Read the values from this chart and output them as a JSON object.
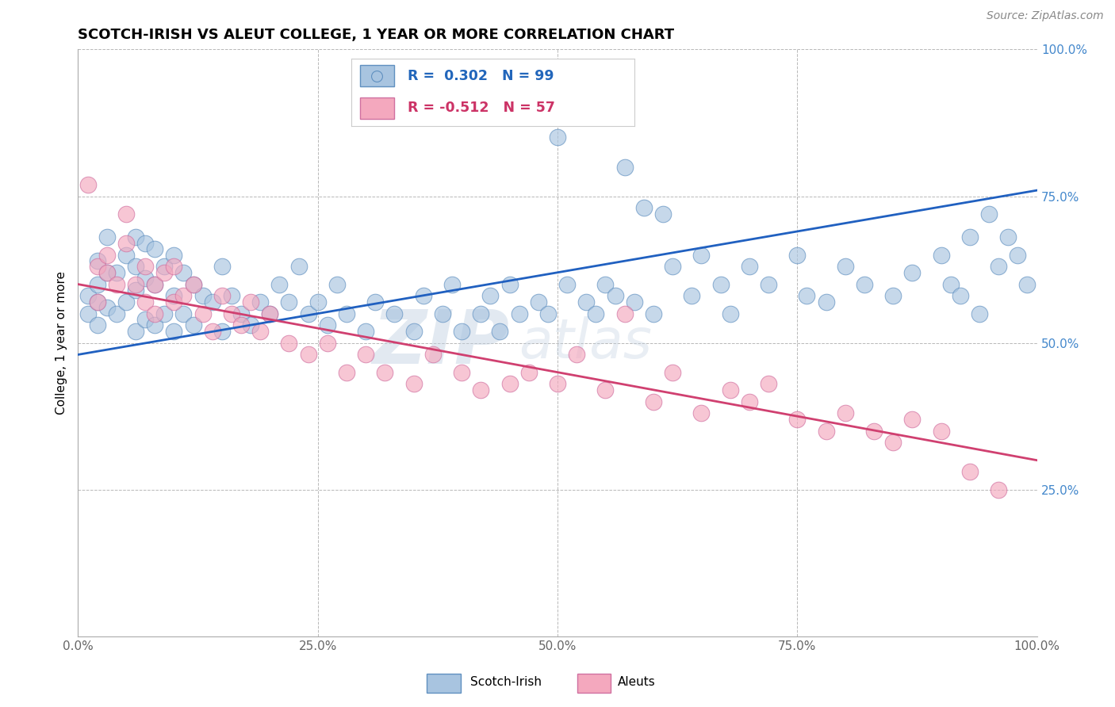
{
  "title": "SCOTCH-IRISH VS ALEUT COLLEGE, 1 YEAR OR MORE CORRELATION CHART",
  "source": "Source: ZipAtlas.com",
  "ylabel": "College, 1 year or more",
  "xlim": [
    0,
    1
  ],
  "ylim": [
    0,
    1
  ],
  "xticks": [
    0,
    0.25,
    0.5,
    0.75,
    1.0
  ],
  "yticks": [
    0.25,
    0.5,
    0.75,
    1.0
  ],
  "xtick_labels": [
    "0.0%",
    "25.0%",
    "50.0%",
    "75.0%",
    "100.0%"
  ],
  "ytick_labels_right": [
    "25.0%",
    "50.0%",
    "75.0%",
    "100.0%"
  ],
  "blue_R": 0.302,
  "blue_N": 99,
  "pink_R": -0.512,
  "pink_N": 57,
  "blue_color": "#a8c4e0",
  "pink_color": "#f4a8be",
  "blue_edge_color": "#6090c0",
  "pink_edge_color": "#d070a0",
  "blue_line_color": "#2060c0",
  "pink_line_color": "#d04070",
  "legend_label_blue": "Scotch-Irish",
  "legend_label_pink": "Aleuts",
  "watermark_zip": "ZIP",
  "watermark_atlas": "atlas",
  "blue_line_x0": 0.0,
  "blue_line_y0": 0.48,
  "blue_line_x1": 1.0,
  "blue_line_y1": 0.76,
  "pink_line_x0": 0.0,
  "pink_line_y0": 0.6,
  "pink_line_x1": 1.0,
  "pink_line_y1": 0.3,
  "blue_scatter_x": [
    0.01,
    0.01,
    0.02,
    0.02,
    0.02,
    0.02,
    0.03,
    0.03,
    0.03,
    0.04,
    0.04,
    0.05,
    0.05,
    0.06,
    0.06,
    0.06,
    0.06,
    0.07,
    0.07,
    0.07,
    0.08,
    0.08,
    0.08,
    0.09,
    0.09,
    0.1,
    0.1,
    0.1,
    0.11,
    0.11,
    0.12,
    0.12,
    0.13,
    0.14,
    0.15,
    0.15,
    0.16,
    0.17,
    0.18,
    0.19,
    0.2,
    0.21,
    0.22,
    0.23,
    0.24,
    0.25,
    0.26,
    0.27,
    0.28,
    0.3,
    0.31,
    0.33,
    0.35,
    0.36,
    0.38,
    0.39,
    0.4,
    0.42,
    0.43,
    0.44,
    0.45,
    0.46,
    0.48,
    0.49,
    0.5,
    0.51,
    0.53,
    0.54,
    0.55,
    0.56,
    0.57,
    0.58,
    0.59,
    0.6,
    0.61,
    0.62,
    0.64,
    0.65,
    0.67,
    0.68,
    0.7,
    0.72,
    0.75,
    0.76,
    0.78,
    0.8,
    0.82,
    0.85,
    0.87,
    0.9,
    0.91,
    0.92,
    0.93,
    0.94,
    0.95,
    0.96,
    0.97,
    0.98,
    0.99
  ],
  "blue_scatter_y": [
    0.55,
    0.58,
    0.53,
    0.57,
    0.6,
    0.64,
    0.56,
    0.62,
    0.68,
    0.55,
    0.62,
    0.57,
    0.65,
    0.52,
    0.59,
    0.63,
    0.68,
    0.54,
    0.61,
    0.67,
    0.53,
    0.6,
    0.66,
    0.55,
    0.63,
    0.52,
    0.58,
    0.65,
    0.55,
    0.62,
    0.53,
    0.6,
    0.58,
    0.57,
    0.52,
    0.63,
    0.58,
    0.55,
    0.53,
    0.57,
    0.55,
    0.6,
    0.57,
    0.63,
    0.55,
    0.57,
    0.53,
    0.6,
    0.55,
    0.52,
    0.57,
    0.55,
    0.52,
    0.58,
    0.55,
    0.6,
    0.52,
    0.55,
    0.58,
    0.52,
    0.6,
    0.55,
    0.57,
    0.55,
    0.85,
    0.6,
    0.57,
    0.55,
    0.6,
    0.58,
    0.8,
    0.57,
    0.73,
    0.55,
    0.72,
    0.63,
    0.58,
    0.65,
    0.6,
    0.55,
    0.63,
    0.6,
    0.65,
    0.58,
    0.57,
    0.63,
    0.6,
    0.58,
    0.62,
    0.65,
    0.6,
    0.58,
    0.68,
    0.55,
    0.72,
    0.63,
    0.68,
    0.65,
    0.6
  ],
  "pink_scatter_x": [
    0.01,
    0.02,
    0.02,
    0.03,
    0.03,
    0.04,
    0.05,
    0.05,
    0.06,
    0.07,
    0.07,
    0.08,
    0.08,
    0.09,
    0.1,
    0.1,
    0.11,
    0.12,
    0.13,
    0.14,
    0.15,
    0.16,
    0.17,
    0.18,
    0.19,
    0.2,
    0.22,
    0.24,
    0.26,
    0.28,
    0.3,
    0.32,
    0.35,
    0.37,
    0.4,
    0.42,
    0.45,
    0.47,
    0.5,
    0.52,
    0.55,
    0.57,
    0.6,
    0.62,
    0.65,
    0.68,
    0.7,
    0.72,
    0.75,
    0.78,
    0.8,
    0.83,
    0.85,
    0.87,
    0.9,
    0.93,
    0.96
  ],
  "pink_scatter_y": [
    0.77,
    0.63,
    0.57,
    0.65,
    0.62,
    0.6,
    0.67,
    0.72,
    0.6,
    0.57,
    0.63,
    0.55,
    0.6,
    0.62,
    0.57,
    0.63,
    0.58,
    0.6,
    0.55,
    0.52,
    0.58,
    0.55,
    0.53,
    0.57,
    0.52,
    0.55,
    0.5,
    0.48,
    0.5,
    0.45,
    0.48,
    0.45,
    0.43,
    0.48,
    0.45,
    0.42,
    0.43,
    0.45,
    0.43,
    0.48,
    0.42,
    0.55,
    0.4,
    0.45,
    0.38,
    0.42,
    0.4,
    0.43,
    0.37,
    0.35,
    0.38,
    0.35,
    0.33,
    0.37,
    0.35,
    0.28,
    0.25
  ]
}
